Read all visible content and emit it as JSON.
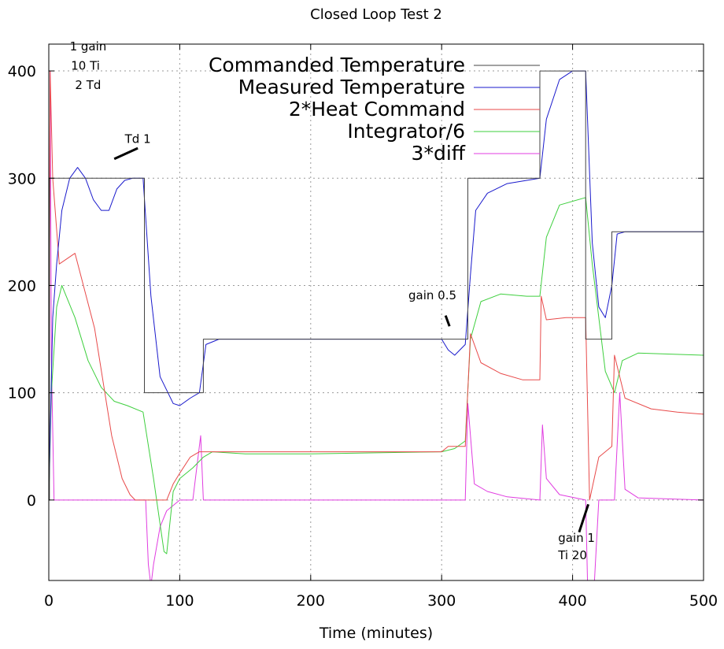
{
  "chart_data": {
    "type": "line",
    "title": "Closed Loop Test 2",
    "xlabel": "Time (minutes)",
    "ylabel": "",
    "xlim": [
      0,
      500
    ],
    "ylim": [
      -75,
      425
    ],
    "xticks": [
      0,
      100,
      200,
      300,
      400,
      500
    ],
    "yticks": [
      0,
      100,
      200,
      300,
      400
    ],
    "grid": true,
    "legend_position": "top-right",
    "colors": {
      "commanded": "#444444",
      "measured": "#1a1acc",
      "heat": "#e84a4a",
      "integrator": "#3ecf3e",
      "diff": "#e03ce0"
    },
    "series": [
      {
        "key": "commanded",
        "name": "Commanded Temperature",
        "x": [
          0,
          0.5,
          0.5,
          73,
          73,
          118,
          118,
          320,
          320,
          375,
          375,
          410,
          410,
          430,
          430,
          500
        ],
        "values": [
          0,
          0,
          300,
          300,
          100,
          100,
          150,
          150,
          300,
          300,
          400,
          400,
          150,
          150,
          250,
          250
        ]
      },
      {
        "key": "measured",
        "name": "Measured  Temperature",
        "x": [
          0,
          3,
          6,
          10,
          16,
          22,
          28,
          34,
          40,
          46,
          52,
          58,
          64,
          72,
          78,
          85,
          95,
          100,
          108,
          115,
          120,
          130,
          160,
          200,
          250,
          300,
          305,
          310,
          318,
          322,
          326,
          335,
          350,
          375,
          380,
          390,
          400,
          410,
          415,
          420,
          425,
          430,
          434,
          440,
          460,
          500
        ],
        "values": [
          0,
          170,
          220,
          270,
          300,
          310,
          300,
          280,
          270,
          270,
          290,
          298,
          300,
          300,
          190,
          115,
          90,
          88,
          95,
          100,
          145,
          150,
          150,
          150,
          150,
          150,
          140,
          135,
          145,
          210,
          270,
          286,
          295,
          300,
          355,
          392,
          400,
          400,
          240,
          180,
          170,
          200,
          248,
          250,
          250,
          250
        ]
      },
      {
        "key": "heat",
        "name": "2*Heat Command",
        "x": [
          0,
          1,
          3,
          8,
          20,
          35,
          48,
          56,
          62,
          66,
          70,
          80,
          90,
          95,
          100,
          108,
          115,
          120,
          140,
          200,
          250,
          300,
          305,
          318,
          322,
          330,
          345,
          362,
          375,
          376,
          380,
          395,
          410,
          413,
          420,
          430,
          432,
          440,
          460,
          480,
          500
        ],
        "values": [
          0,
          400,
          300,
          220,
          230,
          160,
          60,
          20,
          5,
          0,
          0,
          0,
          0,
          15,
          25,
          40,
          45,
          45,
          45,
          45,
          45,
          45,
          50,
          50,
          155,
          128,
          118,
          112,
          112,
          190,
          168,
          170,
          170,
          0,
          40,
          50,
          135,
          95,
          85,
          82,
          80
        ]
      },
      {
        "key": "integrator",
        "name": "Integrator/6",
        "x": [
          0,
          2,
          6,
          10,
          20,
          30,
          40,
          50,
          60,
          72,
          80,
          88,
          90,
          95,
          100,
          110,
          118,
          125,
          150,
          200,
          250,
          300,
          310,
          318,
          322,
          330,
          345,
          365,
          375,
          380,
          390,
          410,
          415,
          425,
          432,
          438,
          450,
          500
        ],
        "values": [
          0,
          100,
          180,
          200,
          170,
          130,
          105,
          92,
          88,
          82,
          20,
          -48,
          -50,
          8,
          20,
          30,
          40,
          45,
          43,
          43,
          44,
          45,
          48,
          55,
          150,
          185,
          192,
          190,
          190,
          245,
          275,
          282,
          220,
          120,
          100,
          130,
          137,
          135
        ]
      },
      {
        "key": "diff",
        "name": "3*diff",
        "x": [
          0,
          1,
          2,
          4,
          10,
          30,
          50,
          60,
          63,
          68,
          72,
          74,
          76,
          78,
          80,
          85,
          90,
          95,
          100,
          110,
          116,
          118,
          125,
          160,
          200,
          250,
          300,
          310,
          318,
          320,
          325,
          335,
          350,
          375,
          377,
          380,
          390,
          410,
          413,
          420,
          432,
          436,
          440,
          450,
          500
        ],
        "values": [
          0,
          400,
          130,
          0,
          0,
          0,
          0,
          0,
          0,
          0,
          0,
          0,
          -60,
          -80,
          -60,
          -25,
          -10,
          -5,
          0,
          0,
          60,
          0,
          0,
          0,
          0,
          0,
          0,
          0,
          0,
          90,
          15,
          8,
          3,
          0,
          70,
          20,
          5,
          0,
          -160,
          0,
          0,
          100,
          10,
          2,
          0
        ]
      }
    ],
    "annotations": [
      {
        "text": "1 gain",
        "x": 30,
        "y": 419
      },
      {
        "text": "10 Ti",
        "x": 28,
        "y": 401
      },
      {
        "text": "2 Td",
        "x": 30,
        "y": 383
      },
      {
        "text": "Td 1",
        "x": 68,
        "y": 333
      },
      {
        "text": "gain 0.5",
        "x": 293,
        "y": 187
      },
      {
        "text": "gain 1",
        "x": 403,
        "y": -39
      },
      {
        "text": "Ti 20",
        "x": 400,
        "y": -55
      }
    ]
  }
}
